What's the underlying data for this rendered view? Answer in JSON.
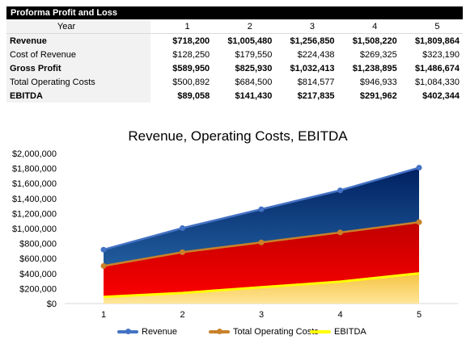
{
  "table": {
    "title": "Proforma Profit and Loss",
    "header": {
      "label": "Year",
      "years": [
        "1",
        "2",
        "3",
        "4",
        "5"
      ]
    },
    "rows": [
      {
        "label": "Revenue",
        "bold": true,
        "values": [
          "$718,200",
          "$1,005,480",
          "$1,256,850",
          "$1,508,220",
          "$1,809,864"
        ]
      },
      {
        "label": "Cost of Revenue",
        "bold": false,
        "values": [
          "$128,250",
          "$179,550",
          "$224,438",
          "$269,325",
          "$323,190"
        ]
      },
      {
        "label": "Gross Profit",
        "bold": true,
        "values": [
          "$589,950",
          "$825,930",
          "$1,032,413",
          "$1,238,895",
          "$1,486,674"
        ]
      },
      {
        "label": "Total Operating Costs",
        "bold": false,
        "values": [
          "$500,892",
          "$684,500",
          "$814,577",
          "$946,933",
          "$1,084,330"
        ]
      },
      {
        "label": "EBITDA",
        "bold": true,
        "values": [
          "$89,058",
          "$141,430",
          "$217,835",
          "$291,962",
          "$402,344"
        ]
      }
    ]
  },
  "chart_data": {
    "type": "area",
    "title": "Revenue, Operating Costs, EBITDA",
    "x": [
      1,
      2,
      3,
      4,
      5
    ],
    "xlabel": "",
    "ylabel": "",
    "ylim": [
      0,
      2000000
    ],
    "yticks": [
      "$0",
      "$200,000",
      "$400,000",
      "$600,000",
      "$800,000",
      "$1,000,000",
      "$1,200,000",
      "$1,400,000",
      "$1,600,000",
      "$1,800,000",
      "$2,000,000"
    ],
    "grid": false,
    "legend_position": "bottom",
    "series": [
      {
        "name": "Revenue",
        "values": [
          718200,
          1005480,
          1256850,
          1508220,
          1809864
        ],
        "line_color": "#4472c4",
        "fill_top": "#002060",
        "fill_bottom": "#2e75b6"
      },
      {
        "name": "Total Operating Costs",
        "values": [
          500892,
          684500,
          814577,
          946933,
          1084330
        ],
        "line_color": "#c9812a",
        "fill_top": "#c00000",
        "fill_bottom": "#ff0000"
      },
      {
        "name": "EBITDA",
        "values": [
          89058,
          141430,
          217835,
          291962,
          402344
        ],
        "line_color": "#ffff00",
        "fill_top": "#f5c342",
        "fill_bottom": "#ffe699"
      }
    ]
  }
}
